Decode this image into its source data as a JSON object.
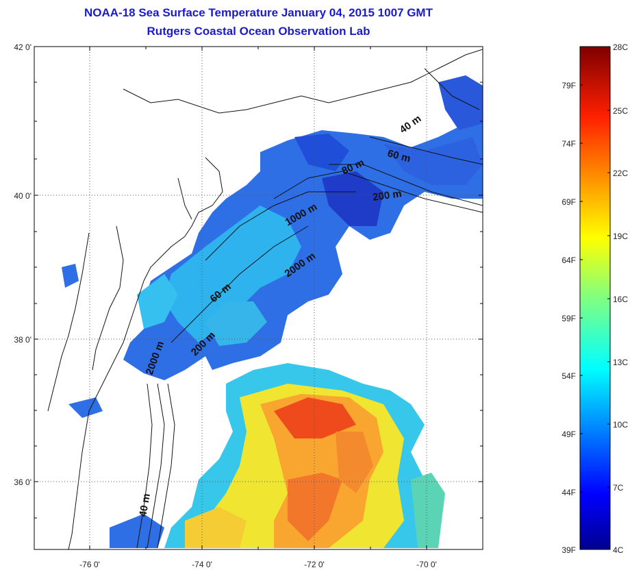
{
  "header": {
    "title": "NOAA-18 Sea Surface Temperature January 04, 2015 1007 GMT",
    "subtitle": "Rutgers Coastal Ocean Observation Lab"
  },
  "map": {
    "lon_labels": [
      "-76 0'",
      "-74 0'",
      "-72 0'",
      "-70 0'"
    ],
    "lat_labels": [
      "42 0'",
      "40 0'",
      "38 0'",
      "36 0'"
    ],
    "depth_contour_labels": [
      "40 m",
      "60 m",
      "80 m",
      "200 m",
      "1000 m",
      "2000 m",
      "60 m",
      "200 m",
      "2000 m",
      "40 m"
    ]
  },
  "colorbar": {
    "celsius_labels": [
      "28C",
      "25C",
      "22C",
      "19C",
      "16C",
      "13C",
      "10C",
      "7C",
      "4C"
    ],
    "fahrenheit_labels": [
      "79F",
      "74F",
      "69F",
      "64F",
      "59F",
      "54F",
      "49F",
      "44F",
      "39F"
    ],
    "colormap": [
      "#7f0000",
      "#ff0000",
      "#ff8000",
      "#ffff00",
      "#80ff80",
      "#00ffff",
      "#0080ff",
      "#0000ff",
      "#00008f"
    ]
  }
}
